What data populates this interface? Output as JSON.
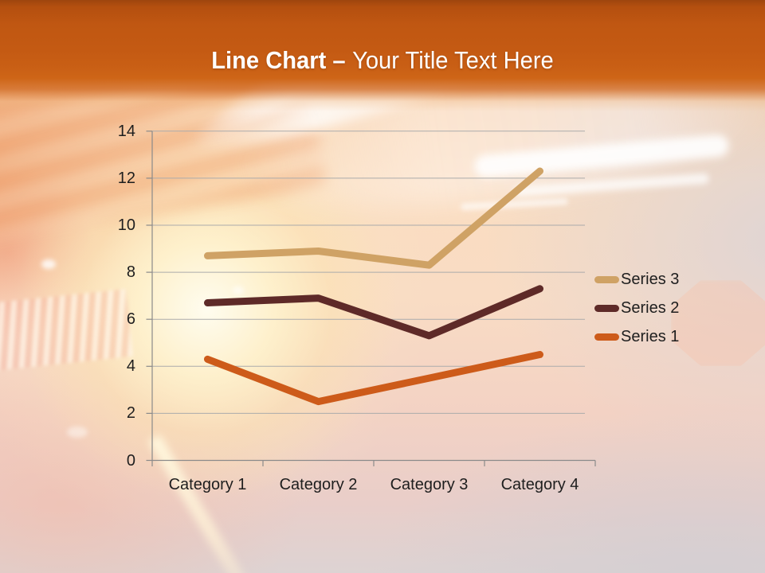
{
  "slide": {
    "title_bold": "Line Chart –",
    "title_rest": "Your Title Text Here"
  },
  "chart_data": {
    "type": "line",
    "categories": [
      "Category 1",
      "Category 2",
      "Category 3",
      "Category 4"
    ],
    "series": [
      {
        "name": "Series 3",
        "values": [
          8.7,
          8.9,
          8.3,
          12.3
        ],
        "color": "#CFA265"
      },
      {
        "name": "Series 2",
        "values": [
          6.7,
          6.9,
          5.3,
          7.3
        ],
        "color": "#5E2A28"
      },
      {
        "name": "Series 1",
        "values": [
          4.3,
          2.5,
          3.5,
          4.5
        ],
        "color": "#CD5B1A"
      }
    ],
    "ylim": [
      0,
      14
    ],
    "yticks": [
      0,
      2,
      4,
      6,
      8,
      10,
      12,
      14
    ],
    "xlabel": "",
    "ylabel": "",
    "grid": true,
    "legend_position": "right"
  },
  "colors": {
    "header_orange": "#C45A13",
    "gridline": "#ABABAB",
    "axis": "#8A8A8A",
    "label_text": "#1E1E1E",
    "title_text": "#FFFFFF"
  }
}
